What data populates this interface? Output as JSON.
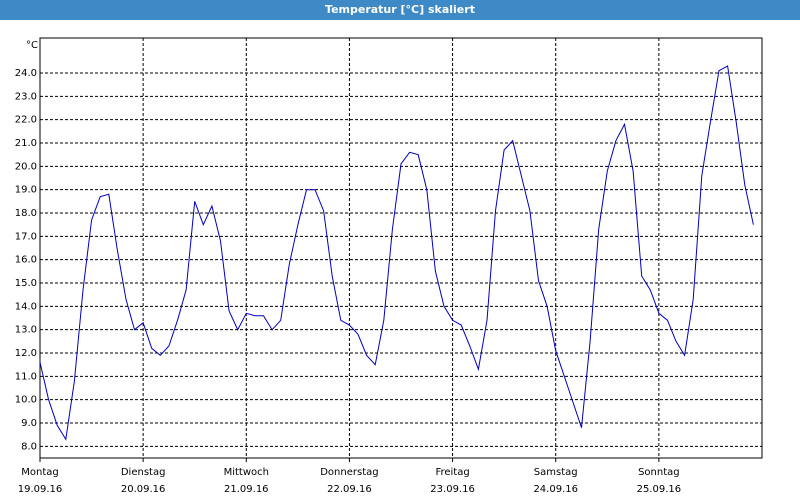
{
  "chart_data": {
    "type": "line",
    "title": "Temperatur [°C] skaliert",
    "unit": "°C",
    "days": [
      {
        "name": "Montag",
        "date": "19.09.16"
      },
      {
        "name": "Dienstag",
        "date": "20.09.16"
      },
      {
        "name": "Mittwoch",
        "date": "21.09.16"
      },
      {
        "name": "Donnerstag",
        "date": "22.09.16"
      },
      {
        "name": "Freitag",
        "date": "23.09.16"
      },
      {
        "name": "Samstag",
        "date": "24.09.16"
      },
      {
        "name": "Sonntag",
        "date": "25.09.16"
      }
    ],
    "values": [
      11.6,
      10.0,
      8.9,
      8.3,
      10.8,
      14.7,
      17.7,
      18.7,
      18.8,
      16.4,
      14.3,
      13.0,
      13.3,
      12.2,
      11.9,
      12.3,
      13.4,
      14.7,
      18.5,
      17.5,
      18.3,
      16.8,
      13.8,
      13.0,
      13.7,
      13.6,
      13.6,
      13.0,
      13.4,
      15.8,
      17.5,
      19.0,
      19.0,
      18.1,
      15.3,
      13.4,
      13.2,
      12.8,
      11.9,
      11.5,
      13.4,
      17.3,
      20.1,
      20.6,
      20.5,
      19.0,
      15.5,
      14.0,
      13.4,
      13.2,
      12.3,
      11.3,
      13.4,
      18.1,
      20.7,
      21.1,
      19.6,
      18.1,
      15.1,
      14.0,
      12.1,
      11.0,
      9.9,
      8.8,
      12.5,
      17.3,
      19.8,
      21.1,
      21.8,
      19.8,
      15.3,
      14.7,
      13.7,
      13.4,
      12.5,
      11.9,
      14.3,
      19.6,
      21.9,
      24.1,
      24.3,
      21.9,
      19.2,
      17.5
    ],
    "color": "#0000c0",
    "ylim": [
      7.5,
      25.5
    ],
    "yticks": [
      {
        "value": 8,
        "label": "8.0"
      },
      {
        "value": 9,
        "label": "9.0"
      },
      {
        "value": 10,
        "label": "10.0"
      },
      {
        "value": 11,
        "label": "11.0"
      },
      {
        "value": 12,
        "label": "12.0"
      },
      {
        "value": 13,
        "label": "13.0"
      },
      {
        "value": 14,
        "label": "14.0"
      },
      {
        "value": 15,
        "label": "15.0"
      },
      {
        "value": 16,
        "label": "16.0"
      },
      {
        "value": 17,
        "label": "17.0"
      },
      {
        "value": 18,
        "label": "18.0"
      },
      {
        "value": 19,
        "label": "19.0"
      },
      {
        "value": 20,
        "label": "20.0"
      },
      {
        "value": 21,
        "label": "21.0"
      },
      {
        "value": 22,
        "label": "22.0"
      },
      {
        "value": 23,
        "label": "23.0"
      },
      {
        "value": 24,
        "label": "24.0"
      }
    ],
    "grid": true
  }
}
